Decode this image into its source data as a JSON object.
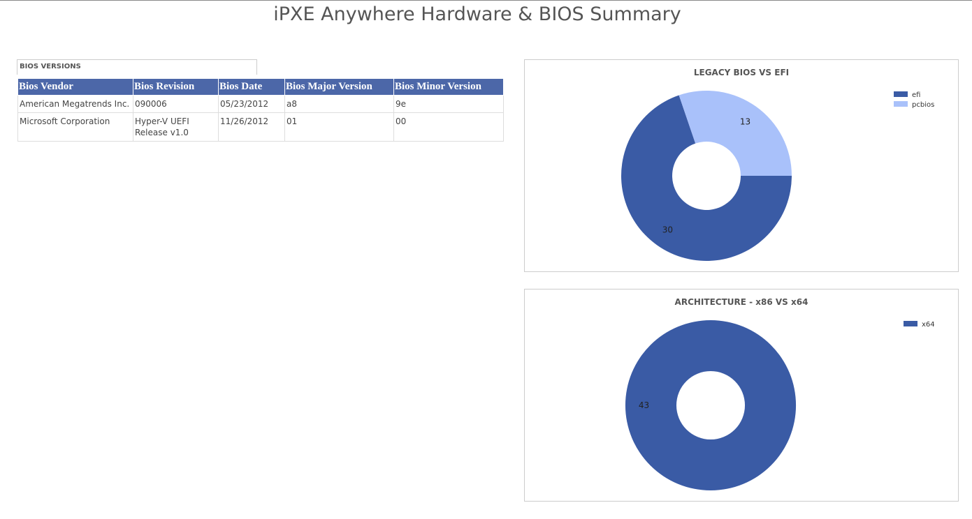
{
  "title": "iPXE Anywhere Hardware & BIOS Summary",
  "table": {
    "title": "BIOS VERSIONS",
    "header": [
      "Bios Vendor",
      "Bios Revision",
      "Bios Date",
      "Bios Major Version",
      "Bios Minor Version"
    ],
    "rows": [
      [
        "American Megatrends Inc.",
        "090006",
        "05/23/2012",
        "a8",
        "9e"
      ],
      [
        "Microsoft Corporation",
        "Hyper-V UEFI Release v1.0",
        "11/26/2012",
        "01",
        "00"
      ]
    ]
  },
  "chart_data": [
    {
      "type": "donut",
      "title": "LEGACY BIOS VS EFI",
      "categories": [
        "efi",
        "pcbios"
      ],
      "values": [
        30,
        13
      ],
      "colors": [
        "#3a5ba5",
        "#a9c1fa"
      ],
      "legend": "top-right"
    },
    {
      "type": "donut",
      "title": "ARCHITECTURE - x86 VS x64",
      "categories": [
        "x64"
      ],
      "values": [
        43
      ],
      "colors": [
        "#3a5ba5"
      ],
      "legend": "top-right"
    }
  ]
}
